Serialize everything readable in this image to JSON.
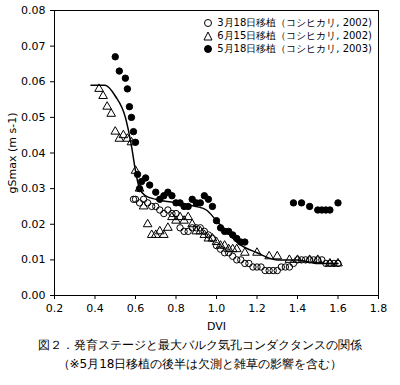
{
  "chart_data": {
    "type": "scatter",
    "title": "図２．発育ステージと最大バルク気孔コンダクタンスの関係",
    "subtitle": "（※5月18日移植の後半は欠測と雑草の影響を含む）",
    "xlabel": "DVI",
    "ylabel": "gSmax (m s-1)",
    "xlim": [
      0.2,
      1.8
    ],
    "xticks": [
      0.2,
      0.4,
      0.6,
      0.8,
      {
        "value": 1,
        "label": "1.0"
      },
      1.2,
      1.4,
      1.6,
      1.8
    ],
    "ylim": [
      0,
      0.08
    ],
    "yticks": [
      {
        "value": 0,
        "label": "0.00"
      },
      {
        "value": 0.01,
        "label": "0.01"
      },
      {
        "value": 0.02,
        "label": "0.02"
      },
      {
        "value": 0.03,
        "label": "0.03"
      },
      {
        "value": 0.04,
        "label": "0.04"
      },
      {
        "value": 0.05,
        "label": "0.05"
      },
      {
        "value": 0.06,
        "label": "0.06"
      },
      {
        "value": 0.07,
        "label": "0.07"
      },
      {
        "value": 0.08,
        "label": "0.08"
      }
    ],
    "legend": "upper right",
    "grid": false,
    "series": [
      {
        "name": "3月18日移植（コシヒカリ, 2002)",
        "color": "#000000",
        "marker": "open_circle",
        "x": [
          0.59,
          0.6,
          0.62,
          0.64,
          0.66,
          0.68,
          0.7,
          0.72,
          0.74,
          0.76,
          0.78,
          0.8,
          0.82,
          0.84,
          0.86,
          0.88,
          0.9,
          0.92,
          0.94,
          0.96,
          0.98,
          1.0,
          1.02,
          1.04,
          1.06,
          1.08,
          1.1,
          1.12,
          1.14,
          1.16,
          1.18,
          1.2,
          1.22,
          1.24,
          1.26,
          1.28,
          1.3,
          1.32,
          1.34,
          1.36,
          1.38,
          1.4,
          1.42,
          1.44,
          1.46,
          1.48,
          1.5,
          1.52,
          1.54,
          1.56,
          1.58,
          1.6
        ],
        "values": [
          0.027,
          0.027,
          0.026,
          0.027,
          0.026,
          0.025,
          0.025,
          0.024,
          0.023,
          0.024,
          0.023,
          0.023,
          0.019,
          0.018,
          0.018,
          0.019,
          0.019,
          0.019,
          0.018,
          0.017,
          0.016,
          0.014,
          0.013,
          0.012,
          0.012,
          0.011,
          0.01,
          0.01,
          0.009,
          0.009,
          0.008,
          0.008,
          0.008,
          0.007,
          0.007,
          0.007,
          0.007,
          0.008,
          0.008,
          0.008,
          0.009,
          0.01,
          0.01,
          0.01,
          0.01,
          0.01,
          0.01,
          0.01,
          0.009,
          0.009,
          0.009,
          0.009
        ]
      },
      {
        "name": "6月15日移植（コシヒカリ, 2002)",
        "color": "#000000",
        "marker": "open_triangle",
        "x": [
          0.42,
          0.44,
          0.46,
          0.48,
          0.5,
          0.52,
          0.54,
          0.56,
          0.58,
          0.6,
          0.62,
          0.64,
          0.66,
          0.68,
          0.7,
          0.72,
          0.74,
          0.76,
          0.78,
          0.8,
          0.82,
          0.84,
          0.86,
          0.88,
          0.9,
          0.92,
          0.94,
          0.96,
          0.98,
          1.0,
          1.02,
          1.04,
          1.06,
          1.08,
          1.1,
          1.14,
          1.2,
          1.26,
          1.3,
          1.36,
          1.4,
          1.46,
          1.5,
          1.56,
          1.6
        ],
        "values": [
          0.058,
          0.056,
          0.053,
          0.051,
          0.046,
          0.044,
          0.045,
          0.044,
          0.043,
          0.035,
          0.03,
          0.025,
          0.02,
          0.017,
          0.017,
          0.018,
          0.017,
          0.019,
          0.022,
          0.021,
          0.022,
          0.021,
          0.022,
          0.02,
          0.018,
          0.018,
          0.017,
          0.016,
          0.016,
          0.015,
          0.014,
          0.014,
          0.013,
          0.013,
          0.013,
          0.012,
          0.012,
          0.011,
          0.011,
          0.01,
          0.01,
          0.01,
          0.01,
          0.009,
          0.009
        ]
      },
      {
        "name": "5月18日移植（コシヒカリ, 2003)",
        "color": "#000000",
        "marker": "filled_circle",
        "x": [
          0.5,
          0.52,
          0.55,
          0.56,
          0.57,
          0.58,
          0.59,
          0.6,
          0.61,
          0.62,
          0.63,
          0.65,
          0.67,
          0.7,
          0.72,
          0.74,
          0.76,
          0.78,
          0.8,
          0.82,
          0.84,
          0.86,
          0.88,
          0.9,
          0.92,
          0.94,
          0.96,
          0.98,
          1.0,
          1.02,
          1.04,
          1.06,
          1.08,
          1.1,
          1.12,
          1.14,
          1.38,
          1.42,
          1.46,
          1.5,
          1.52,
          1.54,
          1.56,
          1.6
        ],
        "values": [
          0.067,
          0.063,
          0.061,
          0.058,
          0.053,
          0.05,
          0.046,
          0.043,
          0.034,
          0.03,
          0.032,
          0.033,
          0.031,
          0.029,
          0.027,
          0.028,
          0.029,
          0.028,
          0.026,
          0.026,
          0.025,
          0.025,
          0.027,
          0.026,
          0.026,
          0.028,
          0.027,
          0.025,
          0.021,
          0.019,
          0.018,
          0.018,
          0.017,
          0.016,
          0.015,
          0.015,
          0.026,
          0.026,
          0.025,
          0.024,
          0.024,
          0.024,
          0.024,
          0.026
        ]
      },
      {
        "type": "line",
        "color": "#000000",
        "line_style": "solid",
        "x": [
          0.38,
          0.45,
          0.5,
          0.55,
          0.58,
          0.6,
          0.62,
          0.65,
          0.7,
          0.8,
          0.9,
          0.95,
          1.0,
          1.05,
          1.1,
          1.2,
          1.3,
          1.4,
          1.5,
          1.6
        ],
        "values": [
          0.059,
          0.059,
          0.056,
          0.05,
          0.042,
          0.035,
          0.03,
          0.028,
          0.027,
          0.026,
          0.025,
          0.024,
          0.021,
          0.018,
          0.015,
          0.012,
          0.01,
          0.01,
          0.009,
          0.009
        ]
      }
    ]
  }
}
